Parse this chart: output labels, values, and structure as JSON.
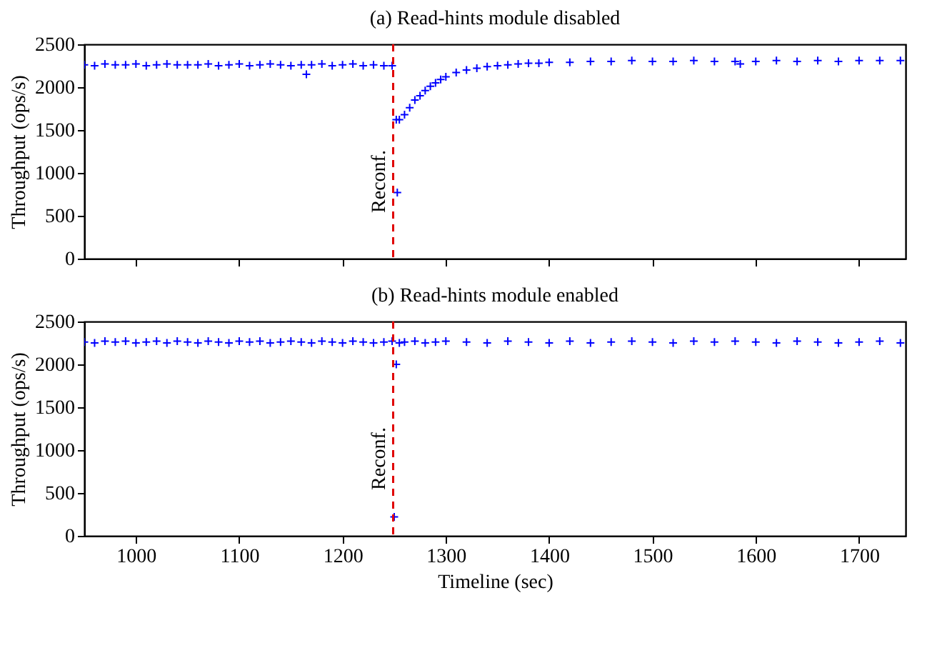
{
  "chart_data": [
    {
      "type": "scatter",
      "title": "(a) Read-hints module disabled",
      "ylabel": "Throughput (ops/s)",
      "xlim": [
        950,
        1745
      ],
      "ylim": [
        0,
        2500
      ],
      "xticks": [
        1000,
        1100,
        1200,
        1300,
        1400,
        1500,
        1600,
        1700
      ],
      "yticks": [
        0,
        500,
        1000,
        1500,
        2000,
        2500
      ],
      "tick_labels": "y",
      "grid": false,
      "marker": "cross",
      "series": [
        {
          "color": "#0000ff",
          "x": [
            950,
            960,
            970,
            980,
            990,
            1000,
            1010,
            1020,
            1030,
            1040,
            1050,
            1060,
            1070,
            1080,
            1090,
            1100,
            1110,
            1120,
            1130,
            1140,
            1150,
            1160,
            1165,
            1170,
            1180,
            1190,
            1200,
            1210,
            1220,
            1230,
            1240,
            1248,
            1252,
            1253,
            1255,
            1260,
            1265,
            1270,
            1275,
            1280,
            1285,
            1290,
            1295,
            1300,
            1310,
            1320,
            1330,
            1340,
            1350,
            1360,
            1370,
            1380,
            1390,
            1400,
            1420,
            1440,
            1460,
            1480,
            1500,
            1520,
            1540,
            1560,
            1580,
            1585,
            1600,
            1620,
            1640,
            1660,
            1680,
            1700,
            1720,
            1740
          ],
          "values": [
            2260,
            2250,
            2270,
            2260,
            2260,
            2270,
            2250,
            2260,
            2270,
            2260,
            2260,
            2260,
            2270,
            2250,
            2260,
            2270,
            2250,
            2260,
            2270,
            2260,
            2250,
            2260,
            2150,
            2260,
            2270,
            2250,
            2260,
            2270,
            2250,
            2260,
            2250,
            2250,
            1620,
            770,
            1620,
            1680,
            1760,
            1850,
            1900,
            1960,
            2010,
            2050,
            2090,
            2120,
            2170,
            2200,
            2220,
            2240,
            2250,
            2260,
            2270,
            2280,
            2280,
            2290,
            2290,
            2300,
            2300,
            2310,
            2300,
            2300,
            2310,
            2300,
            2300,
            2270,
            2300,
            2310,
            2300,
            2310,
            2300,
            2310,
            2310,
            2310
          ]
        }
      ],
      "ref_lines": [
        {
          "axis": "x",
          "value": 1249,
          "label": "Reconf.",
          "color": "#e00000",
          "line_style": "dashed"
        }
      ]
    },
    {
      "type": "scatter",
      "title": "(b) Read-hints module enabled",
      "xlabel": "Timeline (sec)",
      "ylabel": "Throughput (ops/s)",
      "xlim": [
        950,
        1745
      ],
      "ylim": [
        0,
        2500
      ],
      "xticks": [
        1000,
        1100,
        1200,
        1300,
        1400,
        1500,
        1600,
        1700
      ],
      "yticks": [
        0,
        500,
        1000,
        1500,
        2000,
        2500
      ],
      "grid": false,
      "marker": "cross",
      "series": [
        {
          "color": "#0000ff",
          "x": [
            950,
            960,
            970,
            980,
            990,
            1000,
            1010,
            1020,
            1030,
            1040,
            1050,
            1060,
            1070,
            1080,
            1090,
            1100,
            1110,
            1120,
            1130,
            1140,
            1150,
            1160,
            1170,
            1180,
            1190,
            1200,
            1210,
            1220,
            1230,
            1240,
            1248,
            1250,
            1252,
            1255,
            1260,
            1270,
            1280,
            1290,
            1300,
            1320,
            1340,
            1360,
            1380,
            1400,
            1420,
            1440,
            1460,
            1480,
            1500,
            1520,
            1540,
            1560,
            1580,
            1600,
            1620,
            1640,
            1660,
            1680,
            1700,
            1720,
            1740
          ],
          "values": [
            2260,
            2250,
            2270,
            2260,
            2270,
            2250,
            2260,
            2270,
            2250,
            2270,
            2260,
            2250,
            2270,
            2260,
            2250,
            2270,
            2260,
            2270,
            2250,
            2260,
            2270,
            2260,
            2250,
            2270,
            2260,
            2250,
            2270,
            2260,
            2250,
            2260,
            2270,
            220,
            2000,
            2250,
            2260,
            2270,
            2250,
            2260,
            2270,
            2260,
            2250,
            2270,
            2260,
            2250,
            2270,
            2250,
            2260,
            2270,
            2260,
            2250,
            2270,
            2260,
            2270,
            2260,
            2250,
            2270,
            2260,
            2250,
            2260,
            2270,
            2250
          ]
        }
      ],
      "ref_lines": [
        {
          "axis": "x",
          "value": 1249,
          "label": "Reconf.",
          "color": "#e00000",
          "line_style": "dashed"
        }
      ]
    }
  ]
}
